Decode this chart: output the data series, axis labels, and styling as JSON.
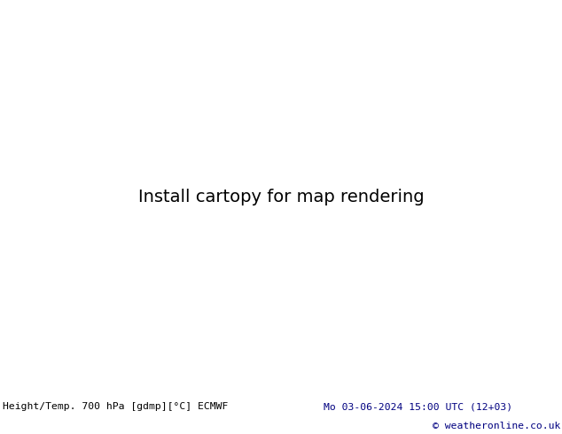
{
  "title_left": "Height/Temp. 700 hPa [gdmp][°C] ECMWF",
  "title_right": "Mo 03-06-2024 15:00 UTC (12+03)",
  "copyright": "© weatheronline.co.uk",
  "map_bg": "#d8d8d8",
  "land_gray": "#c8c8c8",
  "green_color": "#c0f0a0",
  "footer_bg": "#ffffff",
  "footer_navy": "#000080",
  "footer_black": "#000000",
  "contour_black": "#000000",
  "temp_red": "#dd0000",
  "temp_orange": "#ff8800",
  "temp_green": "#00aa00",
  "temp_pink": "#ff2299",
  "figsize": [
    6.34,
    4.9
  ],
  "dpi": 100,
  "map_extent": [
    -175,
    -20,
    15,
    80
  ],
  "proj_lon0": -100
}
